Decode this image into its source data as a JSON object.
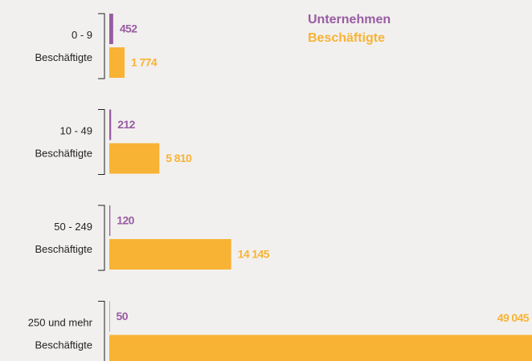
{
  "chart_data": {
    "type": "bar",
    "orientation": "horizontal",
    "categories": [
      [
        "0 - 9",
        "Beschäftigte"
      ],
      [
        "10 - 49",
        "Beschäftigte"
      ],
      [
        "50 - 249",
        "Beschäftigte"
      ],
      [
        "250 und mehr",
        "Beschäftigte"
      ]
    ],
    "series": [
      {
        "name": "Unternehmen",
        "color": "#985ca3",
        "values": [
          452,
          212,
          120,
          50
        ]
      },
      {
        "name": "Beschäftigte",
        "color": "#f8b334",
        "values": [
          1774,
          5810,
          14145,
          49045
        ],
        "value_labels": [
          "1 774",
          "5 810",
          "14 145",
          "49 045"
        ]
      }
    ]
  }
}
